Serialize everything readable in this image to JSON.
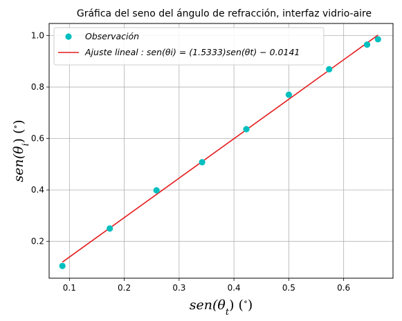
{
  "chart_data": {
    "type": "scatter",
    "title": "Gráfica del seno del ángulo de refracción, interfaz vidrio-aire",
    "xlabel": "sen(θt) (∘)",
    "ylabel": "sen(θi) (∘)",
    "xlim": [
      0.063,
      0.69
    ],
    "ylim": [
      0.057,
      1.047
    ],
    "x_ticks": [
      0.1,
      0.2,
      0.3,
      0.4,
      0.5,
      0.6
    ],
    "x_tick_labels": [
      "0.1",
      "0.2",
      "0.3",
      "0.4",
      "0.5",
      "0.6"
    ],
    "y_ticks": [
      0.2,
      0.4,
      0.6,
      0.8,
      1.0
    ],
    "y_tick_labels": [
      "0.2",
      "0.4",
      "0.6",
      "0.8",
      "1.0"
    ],
    "grid": true,
    "legend_position": "top-left",
    "series": [
      {
        "name": "Observación",
        "kind": "scatter",
        "color": "#00bfbf",
        "x": [
          0.0872,
          0.1736,
          0.2588,
          0.342,
          0.4226,
          0.5,
          0.5736,
          0.6428,
          0.6626
        ],
        "y": [
          0.1045,
          0.2501,
          0.3985,
          0.5079,
          0.6363,
          0.7701,
          0.8689,
          0.9648,
          0.9855
        ]
      },
      {
        "name": "Ajuste lineal :  sen(θi) = (1.5333)sen(θt) − 0.0141",
        "kind": "line",
        "color": "#e41a1c",
        "slope": 1.5333,
        "intercept": -0.0141,
        "x": [
          0.0872,
          0.6626
        ],
        "y": [
          0.1196,
          1.0019
        ]
      }
    ]
  }
}
